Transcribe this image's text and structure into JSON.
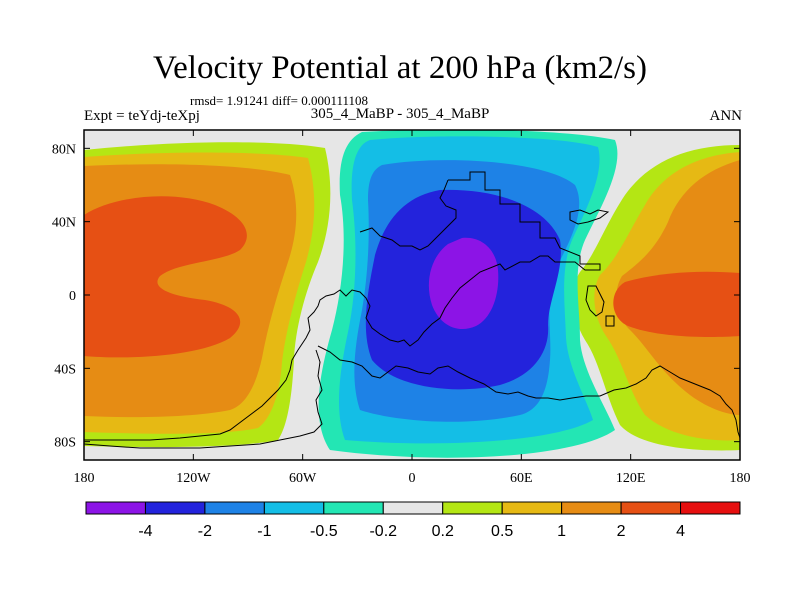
{
  "header": {
    "title": "Velocity Potential at 200 hPa (km2/s)",
    "stats": "rmsd= 1.91241 diff= 0.000111108",
    "left_label": "Expt = teYdj-teXpj",
    "center_label": "305_4_MaBP - 305_4_MaBP",
    "right_label": "ANN"
  },
  "map": {
    "lon_range": [
      -180,
      180
    ],
    "lat_range": [
      -90,
      90
    ],
    "x_ticks": [
      {
        "value": -180,
        "label": "180"
      },
      {
        "value": -120,
        "label": "120W"
      },
      {
        "value": -60,
        "label": "60W"
      },
      {
        "value": 0,
        "label": "0"
      },
      {
        "value": 60,
        "label": "60E"
      },
      {
        "value": 120,
        "label": "120E"
      },
      {
        "value": 180,
        "label": "180"
      }
    ],
    "y_ticks": [
      {
        "value": 80,
        "label": "80N"
      },
      {
        "value": 40,
        "label": "40N"
      },
      {
        "value": 0,
        "label": "0"
      },
      {
        "value": -40,
        "label": "40S"
      },
      {
        "value": -80,
        "label": "80S"
      }
    ]
  },
  "colorbar": {
    "colors": [
      "#8c14e6",
      "#2323dc",
      "#1e82e6",
      "#14bee6",
      "#23e6b4",
      "#e6e6e6",
      "#b4e614",
      "#e6b914",
      "#e68c14",
      "#e65014",
      "#e60f0f"
    ],
    "labels": [
      "-4",
      "-2",
      "-1",
      "-0.5",
      "-0.2",
      "0.2",
      "0.5",
      "1",
      "2",
      "4"
    ]
  }
}
